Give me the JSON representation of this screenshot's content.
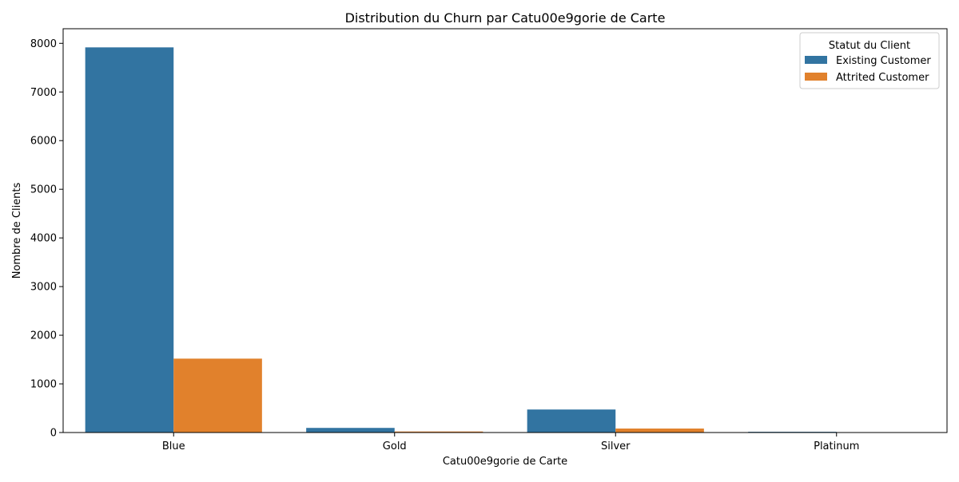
{
  "chart_data": {
    "type": "bar",
    "title": "Distribution du Churn par Catu00e9gorie de Carte",
    "xlabel": "Catu00e9gorie de Carte",
    "ylabel": "Nombre de Clients",
    "categories": [
      "Blue",
      "Gold",
      "Silver",
      "Platinum"
    ],
    "ylim": [
      0,
      8300
    ],
    "yticks": [
      0,
      1000,
      2000,
      3000,
      4000,
      5000,
      6000,
      7000,
      8000
    ],
    "grid": false,
    "legend": {
      "title": "Statut du Client",
      "placement": "top-right"
    },
    "series": [
      {
        "name": "Existing Customer",
        "color": "#3274a1",
        "values": [
          7917,
          95,
          473,
          15
        ]
      },
      {
        "name": "Attrited Customer",
        "color": "#e1812c",
        "values": [
          1519,
          21,
          82,
          5
        ]
      }
    ]
  }
}
